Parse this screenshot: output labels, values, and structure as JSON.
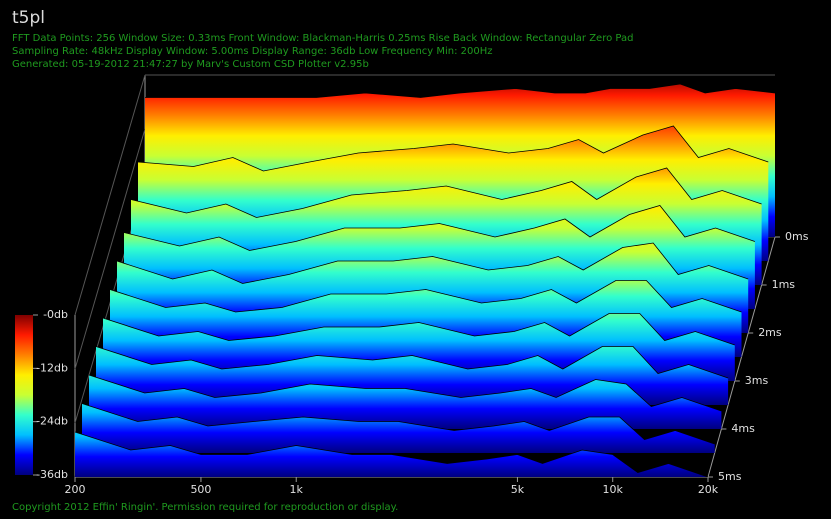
{
  "title": "t5pl",
  "info_lines": [
    "FFT Data Points: 256  Window Size: 0.33ms   Front Window: Blackman-Harris 0.25ms Rise   Back Window: Rectangular Zero Pad",
    "Sampling Rate: 48kHz  Display Window: 5.00ms   Display Range: 36db  Low Frequency Min: 200Hz",
    "Generated: 05-19-2012 21:47:27 by Marv's Custom CSD Plotter v2.95b"
  ],
  "copyright": "Copyright 2012 Effin' Ringin'. Permission required for reproduction or display.",
  "chart_data": {
    "type": "waterfall",
    "x": [
      200,
      300,
      400,
      500,
      700,
      1000,
      1500,
      2000,
      3000,
      4000,
      5000,
      6000,
      8000,
      10000,
      12000,
      15000,
      20000
    ],
    "xlim": [
      200,
      20000
    ],
    "xscale": "log",
    "xticks": [
      200,
      500,
      {
        "value": 1000,
        "label": "1k"
      },
      {
        "value": 5000,
        "label": "5k"
      },
      {
        "value": 10000,
        "label": "10k"
      },
      {
        "value": 20000,
        "label": "20k"
      }
    ],
    "zlim": [
      0,
      5
    ],
    "zticks": [
      {
        "value": 0,
        "label": "0ms"
      },
      {
        "value": 1,
        "label": "1ms"
      },
      {
        "value": 2,
        "label": "2ms"
      },
      {
        "value": 3,
        "label": "3ms"
      },
      {
        "value": 4,
        "label": "4ms"
      },
      {
        "value": 5,
        "label": "5ms"
      }
    ],
    "clim": [
      -36,
      0
    ],
    "cticks": [
      {
        "value": 0,
        "label": "-0db"
      },
      {
        "value": -12,
        "label": "-12db"
      },
      {
        "value": -24,
        "label": "-24db"
      },
      {
        "value": -36,
        "label": "-36db"
      }
    ],
    "colorscale": [
      "#00007f",
      "#0000ff",
      "#00bfff",
      "#33ffcc",
      "#c8ff33",
      "#ffee00",
      "#ff8000",
      "#ff1a00",
      "#7f0000"
    ],
    "series": [
      {
        "t": 0,
        "values": [
          -5,
          -5,
          -5,
          -5,
          -5,
          -4,
          -5,
          -4,
          -3,
          -4,
          -4,
          -3,
          -3,
          -2,
          -4,
          -3,
          -4
        ]
      },
      {
        "t": 0.5,
        "values": [
          -14,
          -15,
          -13,
          -16,
          -14,
          -12,
          -11,
          -10,
          -12,
          -11,
          -9,
          -12,
          -8,
          -6,
          -13,
          -11,
          -14
        ]
      },
      {
        "t": 1,
        "values": [
          -17,
          -20,
          -18,
          -21,
          -19,
          -16,
          -15,
          -14,
          -17,
          -15,
          -13,
          -17,
          -12,
          -10,
          -17,
          -15,
          -18
        ]
      },
      {
        "t": 1.5,
        "values": [
          -19,
          -22,
          -20,
          -23,
          -21,
          -18,
          -18,
          -17,
          -20,
          -18,
          -16,
          -20,
          -15,
          -13,
          -20,
          -18,
          -21
        ]
      },
      {
        "t": 2,
        "values": [
          -20,
          -24,
          -22,
          -25,
          -23,
          -20,
          -20,
          -19,
          -22,
          -21,
          -19,
          -22,
          -17,
          -16,
          -23,
          -21,
          -24
        ]
      },
      {
        "t": 2.5,
        "values": [
          -21,
          -25,
          -24,
          -26,
          -25,
          -22,
          -22,
          -21,
          -24,
          -23,
          -21,
          -24,
          -19,
          -19,
          -25,
          -23,
          -26
        ]
      },
      {
        "t": 3,
        "values": [
          -22,
          -26,
          -25,
          -27,
          -26,
          -24,
          -24,
          -23,
          -26,
          -25,
          -23,
          -26,
          -21,
          -21,
          -27,
          -25,
          -28
        ]
      },
      {
        "t": 3.5,
        "values": [
          -23,
          -27,
          -26,
          -28,
          -27,
          -25,
          -26,
          -25,
          -28,
          -27,
          -25,
          -28,
          -23,
          -23,
          -29,
          -27,
          -30
        ]
      },
      {
        "t": 4,
        "values": [
          -24,
          -28,
          -27,
          -29,
          -28,
          -26,
          -27,
          -27,
          -29,
          -28,
          -27,
          -29,
          -25,
          -26,
          -31,
          -29,
          -32
        ]
      },
      {
        "t": 4.5,
        "values": [
          -25,
          -29,
          -28,
          -30,
          -29,
          -28,
          -29,
          -29,
          -31,
          -30,
          -29,
          -31,
          -28,
          -28,
          -33,
          -31,
          -34
        ]
      },
      {
        "t": 5,
        "values": [
          -26,
          -30,
          -29,
          -31,
          -31,
          -29,
          -31,
          -31,
          -33,
          -32,
          -31,
          -33,
          -30,
          -31,
          -35,
          -33,
          -36
        ]
      }
    ]
  }
}
